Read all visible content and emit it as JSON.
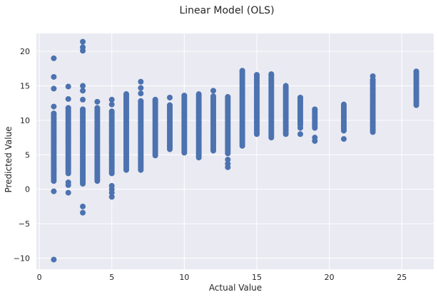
{
  "chart_data": {
    "type": "scatter",
    "title": "Linear Model (OLS)",
    "xlabel": "Actual Value",
    "ylabel": "Predicted Value",
    "xlim": [
      -0.2,
      27.2
    ],
    "ylim": [
      -11.6,
      22.6
    ],
    "xticks": [
      0,
      5,
      10,
      15,
      20,
      25
    ],
    "yticks": [
      -10,
      -5,
      0,
      5,
      10,
      15,
      20
    ],
    "xtick_labels": [
      "0",
      "5",
      "10",
      "15",
      "20",
      "25"
    ],
    "ytick_labels": [
      "−10",
      "−5",
      "0",
      "5",
      "10",
      "15",
      "20"
    ],
    "grid": true,
    "marker_color": "#4c72b0",
    "background_color": "#eaeaf2",
    "grid_color": "#ffffff",
    "columns": [
      {
        "x": 1,
        "y_min": 1.2,
        "y_max": 11.0,
        "outliers": [
          19.0,
          16.3,
          14.6,
          12.0,
          3.0,
          -0.3,
          -10.2
        ]
      },
      {
        "x": 2,
        "y_min": 2.3,
        "y_max": 11.8,
        "outliers": [
          14.9,
          13.1,
          1.0,
          0.6,
          -0.5
        ]
      },
      {
        "x": 3,
        "y_min": 0.8,
        "y_max": 11.6,
        "outliers": [
          21.4,
          20.6,
          20.1,
          15.0,
          14.3,
          13.0,
          -2.5,
          -3.4
        ]
      },
      {
        "x": 4,
        "y_min": 1.2,
        "y_max": 11.8,
        "outliers": [
          12.7
        ]
      },
      {
        "x": 5,
        "y_min": 2.3,
        "y_max": 11.3,
        "outliers": [
          13.0,
          12.3,
          0.5,
          0.0,
          -0.5,
          -1.1
        ]
      },
      {
        "x": 6,
        "y_min": 2.8,
        "y_max": 13.8,
        "outliers": []
      },
      {
        "x": 7,
        "y_min": 2.8,
        "y_max": 12.8,
        "outliers": [
          15.6,
          14.7,
          13.9
        ]
      },
      {
        "x": 8,
        "y_min": 4.9,
        "y_max": 13.0,
        "outliers": []
      },
      {
        "x": 9,
        "y_min": 5.8,
        "y_max": 12.2,
        "outliers": [
          13.3
        ]
      },
      {
        "x": 10,
        "y_min": 5.3,
        "y_max": 13.6,
        "outliers": []
      },
      {
        "x": 11,
        "y_min": 4.6,
        "y_max": 13.8,
        "outliers": []
      },
      {
        "x": 12,
        "y_min": 5.6,
        "y_max": 13.5,
        "outliers": [
          14.3
        ]
      },
      {
        "x": 13,
        "y_min": 5.2,
        "y_max": 13.4,
        "outliers": [
          4.3,
          3.7,
          3.2
        ]
      },
      {
        "x": 14,
        "y_min": 6.3,
        "y_max": 17.2,
        "outliers": []
      },
      {
        "x": 15,
        "y_min": 8.0,
        "y_max": 16.6,
        "outliers": []
      },
      {
        "x": 16,
        "y_min": 7.5,
        "y_max": 16.7,
        "outliers": []
      },
      {
        "x": 17,
        "y_min": 8.0,
        "y_max": 15.0,
        "outliers": []
      },
      {
        "x": 18,
        "y_min": 9.3,
        "y_max": 13.3,
        "outliers": [
          8.0,
          8.9
        ]
      },
      {
        "x": 19,
        "y_min": 8.9,
        "y_max": 11.6,
        "outliers": [
          7.0,
          7.5
        ]
      },
      {
        "x": 21,
        "y_min": 8.5,
        "y_max": 12.3,
        "outliers": [
          7.3
        ]
      },
      {
        "x": 23,
        "y_min": 8.3,
        "y_max": 15.9,
        "outliers": [
          16.4
        ]
      },
      {
        "x": 26,
        "y_min": 12.2,
        "y_max": 17.1,
        "outliers": []
      }
    ]
  }
}
